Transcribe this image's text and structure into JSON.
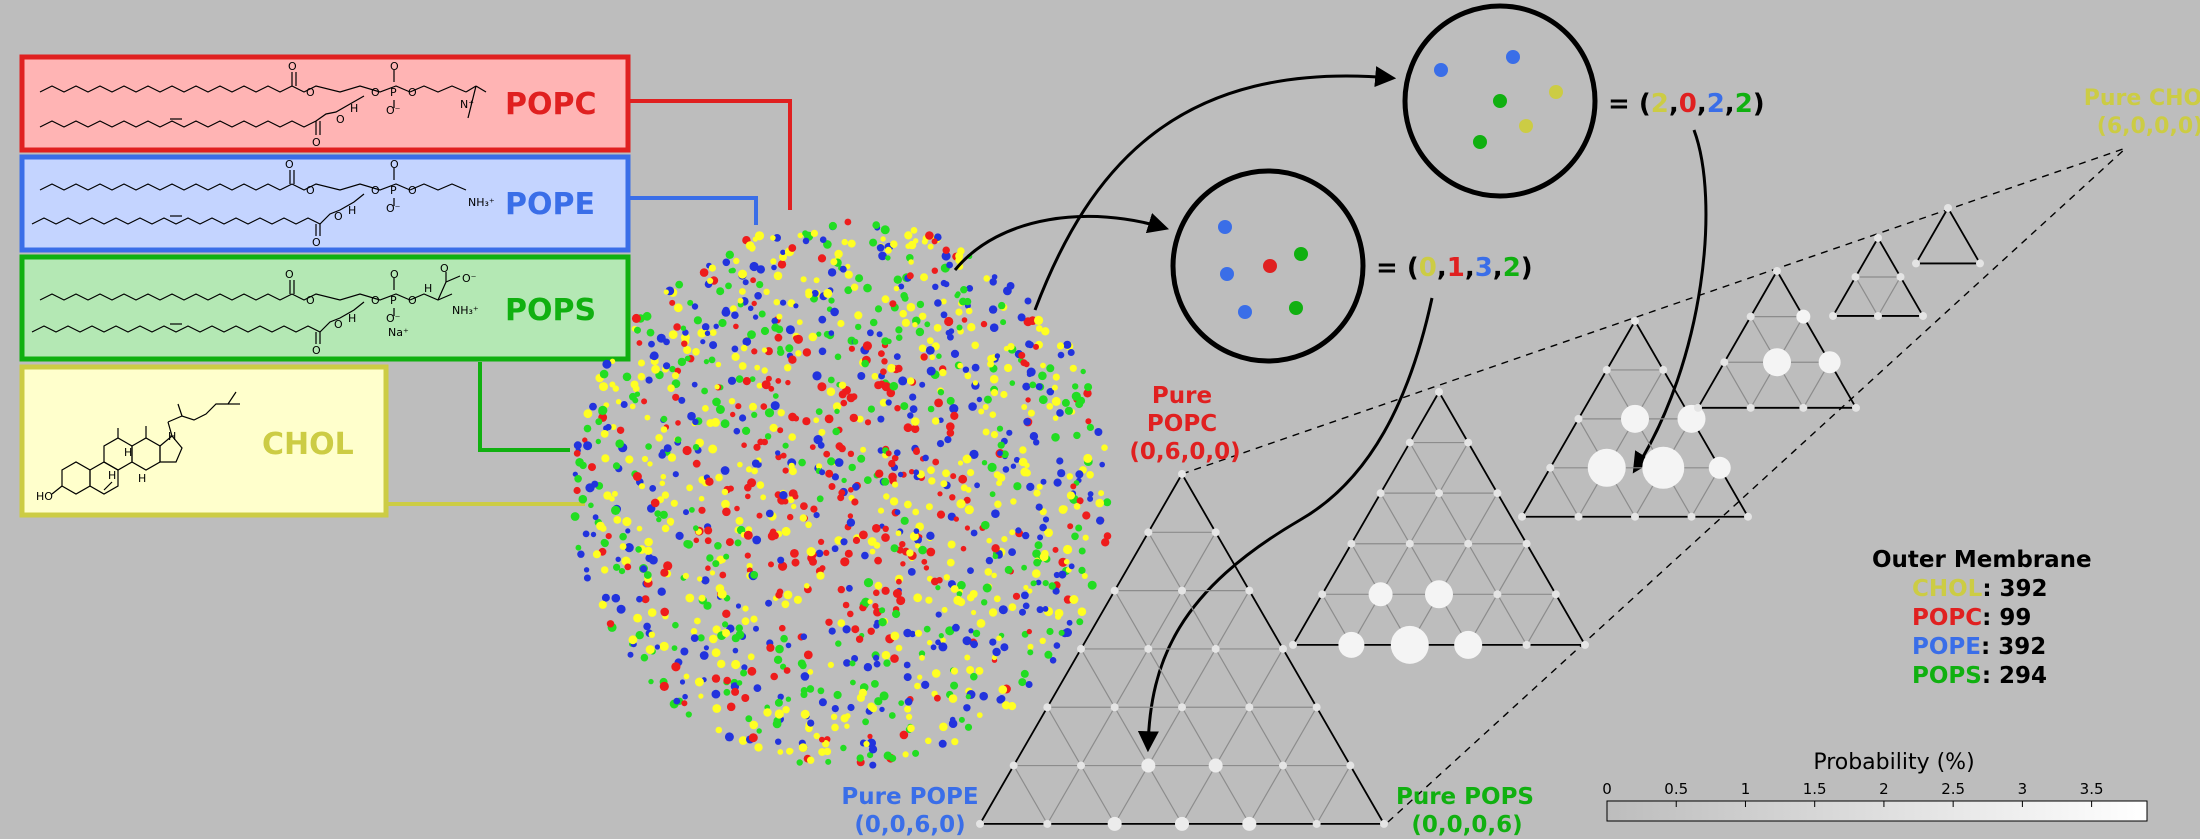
{
  "colors": {
    "chol": "#cccc44",
    "popc": "#e02020",
    "pope": "#3a6ee8",
    "pops": "#10b010",
    "dot_chol": "#ffff22",
    "dot_popc": "#ee1c1c",
    "dot_pope": "#2233dd",
    "dot_pops": "#22dd22"
  },
  "lipids": [
    {
      "key": "popc",
      "name": "POPC"
    },
    {
      "key": "pope",
      "name": "POPE"
    },
    {
      "key": "pops",
      "name": "POPS"
    },
    {
      "key": "chol",
      "name": "CHOL"
    }
  ],
  "chem_labels": {
    "o": "O",
    "p": "P",
    "h": "H",
    "n_plus": "N⁺",
    "o_minus": "O⁻",
    "nh3_plus": "NH₃⁺",
    "na_plus": "Na⁺",
    "ho": "HO"
  },
  "samples": [
    {
      "tuple": [
        2,
        0,
        2,
        2
      ]
    },
    {
      "tuple": [
        0,
        1,
        3,
        2
      ]
    }
  ],
  "vertex_labels": {
    "chol": {
      "line1": "Pure CHOL",
      "line2": "(6,0,0,0)"
    },
    "popc": {
      "line1": "Pure",
      "line2": "POPC",
      "line3": "(0,6,0,0)"
    },
    "pope": {
      "line1": "Pure POPE",
      "line2": "(0,0,6,0)"
    },
    "pops": {
      "line1": "Pure POPS",
      "line2": "(0,0,0,6)"
    }
  },
  "outer_membrane": {
    "title": "Outer Membrane",
    "counts": [
      {
        "key": "chol",
        "name": "CHOL",
        "value": ": 392"
      },
      {
        "key": "popc",
        "name": "POPC",
        "value": ": 99"
      },
      {
        "key": "pope",
        "name": "POPE",
        "value": ": 392"
      },
      {
        "key": "pops",
        "name": "POPS",
        "value": ": 294"
      }
    ]
  },
  "colorbar": {
    "title": "Probability (%)",
    "ticks": [
      0,
      0.5,
      1,
      1.5,
      2,
      2.5,
      3,
      3.5
    ],
    "range": [
      0,
      3.9
    ]
  }
}
